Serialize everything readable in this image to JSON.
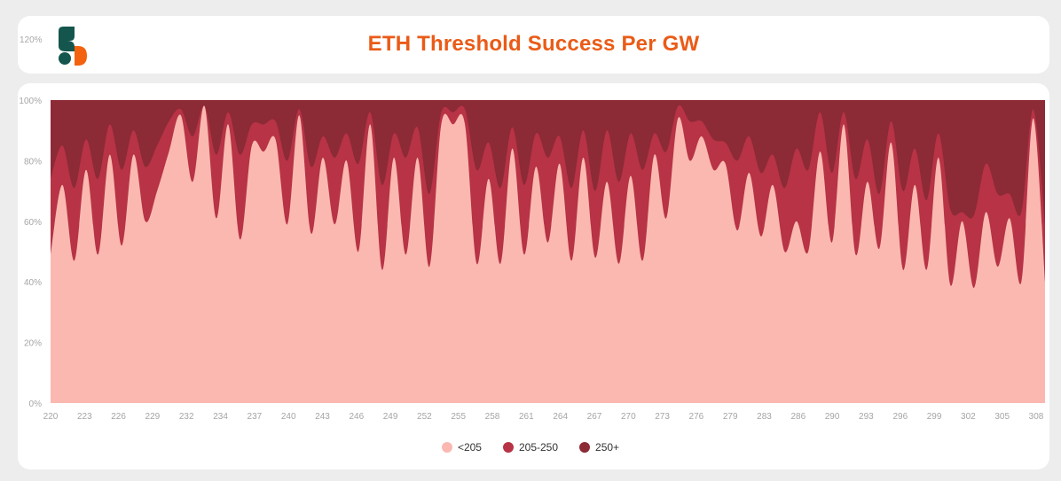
{
  "header": {
    "title": "ETH Threshold Success Per GW"
  },
  "stray_y_tick": "120%",
  "colors": {
    "lt205": "#fab8b1",
    "205to250": "#b73345",
    "250plus": "#8c2a36",
    "title": "#ea5b17",
    "logo_green": "#14564d",
    "logo_orange": "#f3620f"
  },
  "icons": {
    "logo": "brand-logo-icon"
  },
  "chart_data": {
    "type": "area",
    "stacked": true,
    "title": "ETH Threshold Success Per GW",
    "ylim": [
      0,
      100
    ],
    "y_ticks": [
      "0%",
      "20%",
      "40%",
      "60%",
      "80%",
      "100%"
    ],
    "x_ticks": [
      "220",
      "223",
      "226",
      "229",
      "232",
      "234",
      "237",
      "240",
      "243",
      "246",
      "249",
      "252",
      "255",
      "258",
      "261",
      "264",
      "267",
      "270",
      "273",
      "276",
      "279",
      "283",
      "286",
      "290",
      "293",
      "296",
      "299",
      "302",
      "305",
      "308"
    ],
    "grid": false,
    "legend": "bottom",
    "series": [
      {
        "name": "<205",
        "color": "#fab8b1",
        "values": [
          49,
          72,
          47,
          77,
          49,
          82,
          52,
          82,
          60,
          70,
          83,
          95,
          73,
          98,
          61,
          92,
          54,
          85,
          83,
          87,
          59,
          95,
          56,
          81,
          59,
          80,
          50,
          92,
          44,
          81,
          49,
          81,
          45,
          92,
          92,
          92,
          46,
          74,
          46,
          84,
          49,
          78,
          53,
          79,
          47,
          81,
          48,
          73,
          46,
          75,
          47,
          82,
          61,
          94,
          80,
          88,
          77,
          79,
          57,
          76,
          55,
          72,
          50,
          60,
          50,
          83,
          53,
          92,
          49,
          73,
          51,
          86,
          44,
          72,
          44,
          81,
          39,
          60,
          38,
          63,
          45,
          61,
          40,
          94,
          40
        ]
      },
      {
        "name": "205-250",
        "color": "#b73345",
        "values": [
          25,
          13,
          24,
          10,
          25,
          10,
          25,
          8,
          18,
          15,
          10,
          2,
          15,
          0,
          21,
          4,
          28,
          7,
          9,
          6,
          21,
          2,
          22,
          7,
          22,
          9,
          29,
          4,
          28,
          8,
          32,
          10,
          24,
          4,
          4,
          5,
          31,
          12,
          25,
          7,
          23,
          11,
          28,
          9,
          24,
          9,
          22,
          17,
          27,
          14,
          30,
          7,
          22,
          4,
          13,
          5,
          10,
          7,
          23,
          12,
          21,
          10,
          21,
          24,
          27,
          13,
          23,
          4,
          25,
          14,
          18,
          7,
          26,
          12,
          23,
          8,
          25,
          3,
          24,
          16,
          24,
          8,
          23,
          3,
          19
        ]
      },
      {
        "name": "250+",
        "color": "#8c2a36",
        "values": [
          26,
          15,
          29,
          13,
          26,
          8,
          23,
          10,
          22,
          15,
          7,
          3,
          12,
          2,
          18,
          4,
          18,
          8,
          8,
          7,
          20,
          3,
          22,
          12,
          19,
          11,
          21,
          4,
          28,
          11,
          19,
          9,
          31,
          4,
          4,
          3,
          23,
          14,
          29,
          9,
          28,
          11,
          19,
          12,
          29,
          10,
          30,
          10,
          27,
          11,
          23,
          11,
          17,
          2,
          7,
          7,
          13,
          14,
          20,
          12,
          24,
          18,
          29,
          16,
          23,
          4,
          24,
          4,
          26,
          13,
          31,
          7,
          30,
          16,
          33,
          11,
          36,
          37,
          38,
          21,
          31,
          31,
          37,
          3,
          41
        ]
      }
    ]
  },
  "legend": {
    "items": [
      "<205",
      "205-250",
      "250+"
    ]
  }
}
